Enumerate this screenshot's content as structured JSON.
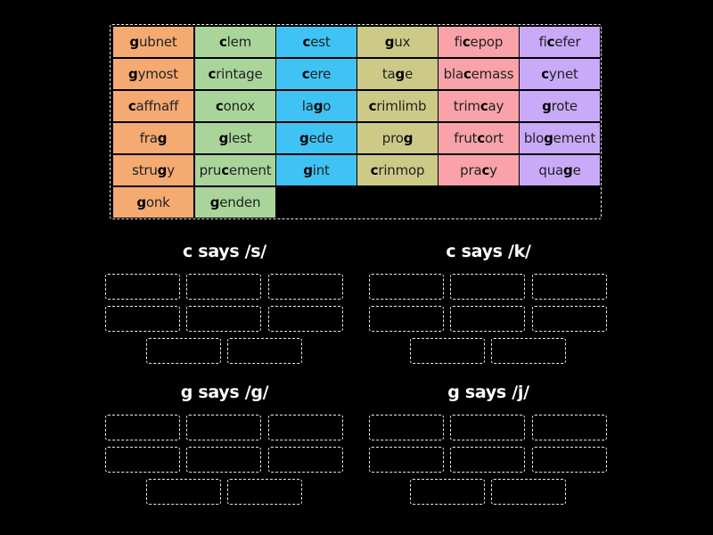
{
  "colors": {
    "background": "#000000",
    "col0": "#f5aa72",
    "col1": "#a9d59b",
    "col2": "#3fc3f5",
    "col3": "#cdca88",
    "col4": "#f9a2aa",
    "col5": "#c9aaf8",
    "dashed_border": "#e8e8e8"
  },
  "tiles": [
    {
      "col": 0,
      "row": 0,
      "pre": "",
      "hl": "g",
      "post": "ubnet",
      "word": "gubnet"
    },
    {
      "col": 0,
      "row": 1,
      "pre": "",
      "hl": "g",
      "post": "ymost",
      "word": "gymost"
    },
    {
      "col": 0,
      "row": 2,
      "pre": "",
      "hl": "c",
      "post": "affnaff",
      "word": "caffnaff"
    },
    {
      "col": 0,
      "row": 3,
      "pre": "fra",
      "hl": "g",
      "post": "",
      "word": "frag"
    },
    {
      "col": 0,
      "row": 4,
      "pre": "stru",
      "hl": "g",
      "post": "y",
      "word": "strugy"
    },
    {
      "col": 0,
      "row": 5,
      "pre": "",
      "hl": "g",
      "post": "onk",
      "word": "gonk"
    },
    {
      "col": 1,
      "row": 0,
      "pre": "",
      "hl": "c",
      "post": "lem",
      "word": "clem"
    },
    {
      "col": 1,
      "row": 1,
      "pre": "",
      "hl": "c",
      "post": "rintage",
      "word": "crintage"
    },
    {
      "col": 1,
      "row": 2,
      "pre": "",
      "hl": "c",
      "post": "onox",
      "word": "conox"
    },
    {
      "col": 1,
      "row": 3,
      "pre": "",
      "hl": "g",
      "post": "lest",
      "word": "glest"
    },
    {
      "col": 1,
      "row": 4,
      "pre": "pru",
      "hl": "c",
      "post": "ement",
      "word": "prucement"
    },
    {
      "col": 1,
      "row": 5,
      "pre": "",
      "hl": "g",
      "post": "enden",
      "word": "genden"
    },
    {
      "col": 2,
      "row": 0,
      "pre": "",
      "hl": "c",
      "post": "est",
      "word": "cest"
    },
    {
      "col": 2,
      "row": 1,
      "pre": "",
      "hl": "c",
      "post": "ere",
      "word": "cere"
    },
    {
      "col": 2,
      "row": 2,
      "pre": "la",
      "hl": "g",
      "post": "o",
      "word": "lago"
    },
    {
      "col": 2,
      "row": 3,
      "pre": "",
      "hl": "g",
      "post": "ede",
      "word": "gede"
    },
    {
      "col": 2,
      "row": 4,
      "pre": "",
      "hl": "g",
      "post": "int",
      "word": "gint"
    },
    {
      "col": 3,
      "row": 0,
      "pre": "",
      "hl": "g",
      "post": "ux",
      "word": "gux"
    },
    {
      "col": 3,
      "row": 1,
      "pre": "ta",
      "hl": "g",
      "post": "e",
      "word": "tage"
    },
    {
      "col": 3,
      "row": 2,
      "pre": "",
      "hl": "c",
      "post": "rimlimb",
      "word": "crimlimb"
    },
    {
      "col": 3,
      "row": 3,
      "pre": "pro",
      "hl": "g",
      "post": "",
      "word": "prog"
    },
    {
      "col": 3,
      "row": 4,
      "pre": "",
      "hl": "c",
      "post": "rinmop",
      "word": "crinmop"
    },
    {
      "col": 4,
      "row": 0,
      "pre": "fi",
      "hl": "c",
      "post": "epop",
      "word": "ficepop"
    },
    {
      "col": 4,
      "row": 1,
      "pre": "bla",
      "hl": "c",
      "post": "emass",
      "word": "blacemass"
    },
    {
      "col": 4,
      "row": 2,
      "pre": "trim",
      "hl": "c",
      "post": "ay",
      "word": "trimcay"
    },
    {
      "col": 4,
      "row": 3,
      "pre": "frut",
      "hl": "c",
      "post": "ort",
      "word": "frutcort"
    },
    {
      "col": 4,
      "row": 4,
      "pre": "pra",
      "hl": "c",
      "post": "y",
      "word": "pracy"
    },
    {
      "col": 5,
      "row": 0,
      "pre": "fi",
      "hl": "c",
      "post": "efer",
      "word": "ficefer"
    },
    {
      "col": 5,
      "row": 1,
      "pre": "",
      "hl": "c",
      "post": "ynet",
      "word": "cynet"
    },
    {
      "col": 5,
      "row": 2,
      "pre": "",
      "hl": "g",
      "post": "rote",
      "word": "grote"
    },
    {
      "col": 5,
      "row": 3,
      "pre": "blo",
      "hl": "g",
      "post": "ement",
      "word": "blogement"
    },
    {
      "col": 5,
      "row": 4,
      "pre": "qua",
      "hl": "g",
      "post": "e",
      "word": "quage"
    }
  ],
  "groups": [
    {
      "title": "c says /s/",
      "slot_count": 8
    },
    {
      "title": "c says /k/",
      "slot_count": 8
    },
    {
      "title": "g says /g/",
      "slot_count": 8
    },
    {
      "title": "g says /j/",
      "slot_count": 8
    }
  ]
}
